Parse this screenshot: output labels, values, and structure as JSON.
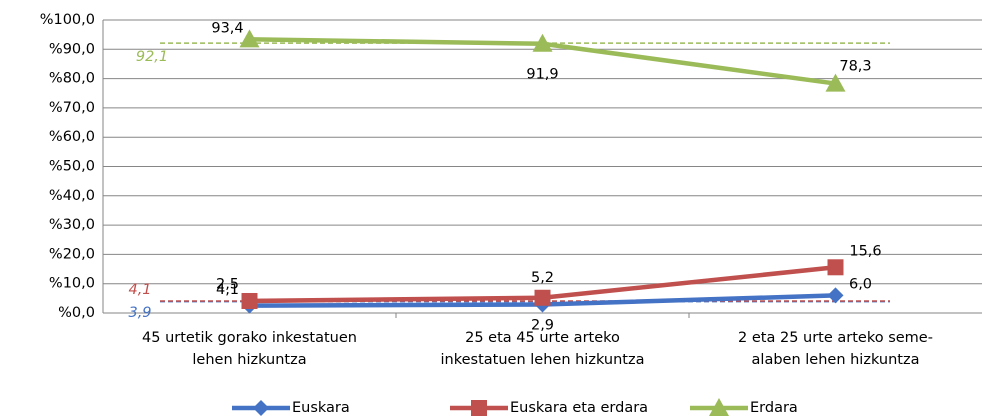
{
  "chart_data": {
    "type": "line",
    "categories": [
      [
        "45 urtetik gorako inkestatuen",
        "lehen hizkuntza"
      ],
      [
        "25 eta 45 urte arteko",
        "inkestatuen lehen hizkuntza"
      ],
      [
        "2 eta 25 urte arteko seme-",
        "alaben lehen hizkuntza"
      ]
    ],
    "series": [
      {
        "name": "Euskara",
        "color": "#4472c4",
        "marker": "diamond",
        "values": [
          2.5,
          2.9,
          6.0
        ],
        "value_labels": [
          "2,5",
          "2,9",
          "6,0"
        ],
        "average": 3.9,
        "average_label": "3,9"
      },
      {
        "name": "Euskara eta erdara",
        "color": "#c0504d",
        "marker": "square",
        "values": [
          4.1,
          5.2,
          15.6
        ],
        "value_labels": [
          "4,1",
          "5,2",
          "15,6"
        ],
        "average": 4.1,
        "average_label": "4,1"
      },
      {
        "name": "Erdara",
        "color": "#9bbb59",
        "marker": "triangle",
        "values": [
          93.4,
          91.9,
          78.3
        ],
        "value_labels": [
          "93,4",
          "91,9",
          "78,3"
        ],
        "average": 92.1,
        "average_label": "92,1"
      }
    ],
    "ylim": [
      0,
      100
    ],
    "yticks": [
      {
        "value": 0,
        "label": "%0,0"
      },
      {
        "value": 10,
        "label": "%10,0"
      },
      {
        "value": 20,
        "label": "%20,0"
      },
      {
        "value": 30,
        "label": "%30,0"
      },
      {
        "value": 40,
        "label": "%40,0"
      },
      {
        "value": 50,
        "label": "%50,0"
      },
      {
        "value": 60,
        "label": "%60,0"
      },
      {
        "value": 70,
        "label": "%70,0"
      },
      {
        "value": 80,
        "label": "%80,0"
      },
      {
        "value": 90,
        "label": "%90,0"
      },
      {
        "value": 100,
        "label": "%100,0"
      }
    ],
    "grid": true,
    "legend": "bottom"
  }
}
